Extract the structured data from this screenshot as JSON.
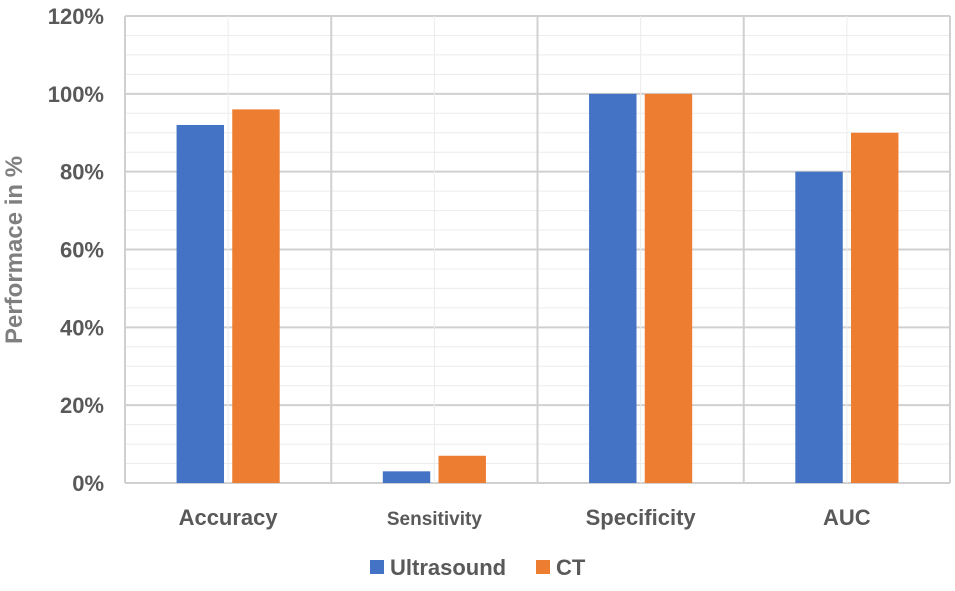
{
  "chart_data": {
    "type": "bar",
    "categories": [
      "Accuracy",
      "Sensitivity",
      "Specificity",
      "AUC"
    ],
    "series": [
      {
        "name": "Ultrasound",
        "color": "#4472c4",
        "values": [
          92,
          3,
          100,
          80
        ]
      },
      {
        "name": "CT",
        "color": "#ed7d31",
        "values": [
          96,
          7,
          100,
          90
        ]
      }
    ],
    "ylabel": "Performace in %",
    "xlabel": "",
    "ylim": [
      0,
      120
    ],
    "yticks": [
      "0%",
      "20%",
      "40%",
      "60%",
      "80%",
      "100%",
      "120%"
    ],
    "grid": true,
    "legend_position": "bottom"
  }
}
